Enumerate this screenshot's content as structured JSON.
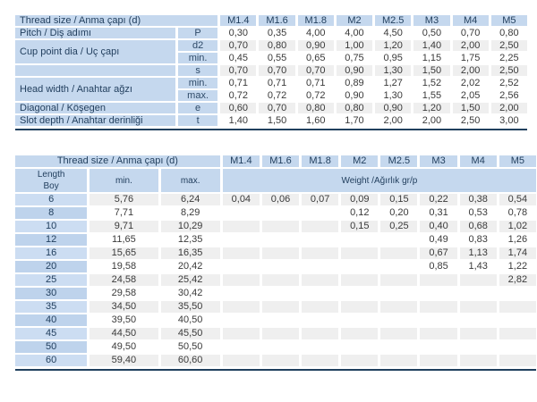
{
  "colors": {
    "header_blue": "#c5d8ee",
    "length_blue_light": "#ccddf2",
    "length_blue_dark": "#bed3ec",
    "stripe_gray": "#efefef",
    "rule_navy": "#20405e",
    "header_text": "#23405f",
    "data_text": "#3a3a3a"
  },
  "dimension_table": {
    "title": "Thread size / Anma çapı (d)",
    "columns": [
      "M1.4",
      "M1.6",
      "M1.8",
      "M2",
      "M2.5",
      "M3",
      "M4",
      "M5"
    ],
    "rows": [
      {
        "label": "Pitch / Diş adımı",
        "labelRowspan": 1,
        "symbol": "P",
        "values": [
          "0,30",
          "0,35",
          "4,00",
          "4,00",
          "4,50",
          "0,50",
          "0,70",
          "0,80"
        ]
      },
      {
        "label": "Cup point dia / Uç çapı",
        "labelRowspan": 2,
        "symbol": "d2",
        "values": [
          "0,70",
          "0,80",
          "0,90",
          "1,00",
          "1,20",
          "1,40",
          "2,00",
          "2,50"
        ]
      },
      {
        "symbol": "min.",
        "values": [
          "0,45",
          "0,55",
          "0,65",
          "0,75",
          "0,95",
          "1,15",
          "1,75",
          "2,25"
        ]
      },
      {
        "label": "",
        "labelRowspan": 1,
        "symbol": "s",
        "values": [
          "0,70",
          "0,70",
          "0,70",
          "0,90",
          "1,30",
          "1,50",
          "2,00",
          "2,50"
        ]
      },
      {
        "label": "Head width / Anahtar ağzı",
        "labelRowspan": 2,
        "symbol": "min.",
        "values": [
          "0,71",
          "0,71",
          "0,71",
          "0,89",
          "1,27",
          "1,52",
          "2,02",
          "2,52"
        ]
      },
      {
        "symbol": "max.",
        "values": [
          "0,72",
          "0,72",
          "0,72",
          "0,90",
          "1,30",
          "1,55",
          "2,05",
          "2,56"
        ]
      },
      {
        "label": "Diagonal / Köşegen",
        "labelRowspan": 1,
        "symbol": "e",
        "values": [
          "0,60",
          "0,70",
          "0,80",
          "0,80",
          "0,90",
          "1,20",
          "1,50",
          "2,00"
        ]
      },
      {
        "label": "Slot depth / Anahtar derinliği",
        "labelRowspan": 1,
        "symbol": "t",
        "values": [
          "1,40",
          "1,50",
          "1,60",
          "1,70",
          "2,00",
          "2,00",
          "2,50",
          "3,00"
        ]
      }
    ]
  },
  "weight_table": {
    "title": "Thread size / Anma çapı (d)",
    "columns": [
      "M1.4",
      "M1.6",
      "M1.8",
      "M2",
      "M2.5",
      "M3",
      "M4",
      "M5"
    ],
    "length_header_line1": "Length",
    "length_header_line2": "Boy",
    "min_header": "min.",
    "max_header": "max.",
    "weight_header": "Weight /Ağırlık gr/p",
    "rows": [
      {
        "length": "6",
        "min": "5,76",
        "max": "6,24",
        "weights": [
          "0,04",
          "0,06",
          "0,07",
          "0,09",
          "0,15",
          "0,22",
          "0,38",
          "0,54"
        ]
      },
      {
        "length": "8",
        "min": "7,71",
        "max": "8,29",
        "weights": [
          "",
          "",
          "",
          "0,12",
          "0,20",
          "0,31",
          "0,53",
          "0,78"
        ]
      },
      {
        "length": "10",
        "min": "9,71",
        "max": "10,29",
        "weights": [
          "",
          "",
          "",
          "0,15",
          "0,25",
          "0,40",
          "0,68",
          "1,02"
        ]
      },
      {
        "length": "12",
        "min": "11,65",
        "max": "12,35",
        "weights": [
          "",
          "",
          "",
          "",
          "",
          "0,49",
          "0,83",
          "1,26"
        ]
      },
      {
        "length": "16",
        "min": "15,65",
        "max": "16,35",
        "weights": [
          "",
          "",
          "",
          "",
          "",
          "0,67",
          "1,13",
          "1,74"
        ]
      },
      {
        "length": "20",
        "min": "19,58",
        "max": "20,42",
        "weights": [
          "",
          "",
          "",
          "",
          "",
          "0,85",
          "1,43",
          "1,22"
        ]
      },
      {
        "length": "25",
        "min": "24,58",
        "max": "25,42",
        "weights": [
          "",
          "",
          "",
          "",
          "",
          "",
          "",
          "2,82"
        ]
      },
      {
        "length": "30",
        "min": "29,58",
        "max": "30,42",
        "weights": [
          "",
          "",
          "",
          "",
          "",
          "",
          "",
          ""
        ]
      },
      {
        "length": "35",
        "min": "34,50",
        "max": "35,50",
        "weights": [
          "",
          "",
          "",
          "",
          "",
          "",
          "",
          ""
        ]
      },
      {
        "length": "40",
        "min": "39,50",
        "max": "40,50",
        "weights": [
          "",
          "",
          "",
          "",
          "",
          "",
          "",
          ""
        ]
      },
      {
        "length": "45",
        "min": "44,50",
        "max": "45,50",
        "weights": [
          "",
          "",
          "",
          "",
          "",
          "",
          "",
          ""
        ]
      },
      {
        "length": "50",
        "min": "49,50",
        "max": "50,50",
        "weights": [
          "",
          "",
          "",
          "",
          "",
          "",
          "",
          ""
        ]
      },
      {
        "length": "60",
        "min": "59,40",
        "max": "60,60",
        "weights": [
          "",
          "",
          "",
          "",
          "",
          "",
          "",
          ""
        ]
      }
    ]
  }
}
